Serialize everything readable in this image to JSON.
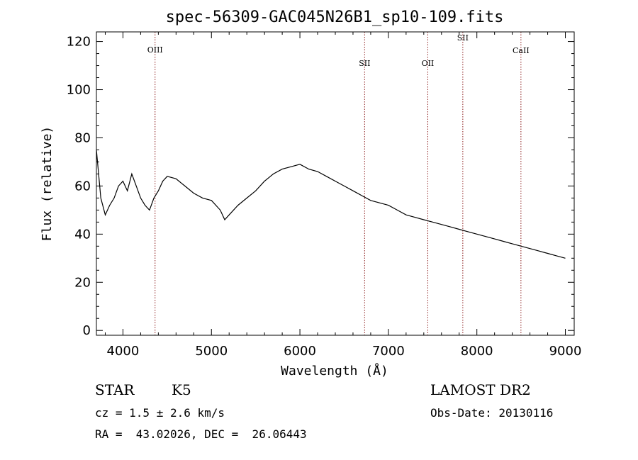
{
  "chart_data": {
    "type": "line",
    "title": "spec-56309-GAC045N26B1_sp10-109.fits",
    "xlabel": "Wavelength (Å)",
    "ylabel": "Flux (relative)",
    "xlim": [
      3700,
      9100
    ],
    "ylim": [
      -2,
      124
    ],
    "xticks": [
      4000,
      5000,
      6000,
      7000,
      8000,
      9000
    ],
    "yticks": [
      0,
      20,
      40,
      60,
      80,
      100,
      120
    ],
    "grid": false,
    "series": [
      {
        "x": [
          3700,
          3750,
          3800,
          3850,
          3900,
          3950,
          4000,
          4050,
          4100,
          4150,
          4200,
          4250,
          4300,
          4350,
          4400,
          4450,
          4500,
          4600,
          4700,
          4800,
          4900,
          5000,
          5100,
          5150,
          5200,
          5300,
          5400,
          5500,
          5600,
          5700,
          5800,
          5900,
          6000,
          6100,
          6200,
          6300,
          6400,
          6500,
          6600,
          6700,
          6800,
          6900,
          7000,
          7100,
          7200,
          7300,
          7400,
          7500,
          7600,
          7700,
          7800,
          7900,
          8000,
          8100,
          8200,
          8300,
          8400,
          8500,
          8600,
          8700,
          8800,
          8900,
          9000
        ],
        "y": [
          75,
          55,
          48,
          52,
          55,
          60,
          62,
          58,
          65,
          60,
          55,
          52,
          50,
          55,
          58,
          62,
          64,
          63,
          60,
          57,
          55,
          54,
          50,
          46,
          48,
          52,
          55,
          58,
          62,
          65,
          67,
          68,
          69,
          67,
          66,
          64,
          62,
          60,
          58,
          56,
          54,
          53,
          52,
          50,
          48,
          47,
          46,
          45,
          44,
          43,
          42,
          41,
          40,
          39,
          38,
          37,
          36,
          35,
          34,
          33,
          32,
          31,
          30
        ]
      }
    ],
    "reference_lines": [
      {
        "label": "OIII",
        "x": 4363
      },
      {
        "label": "SII",
        "x": 6731
      },
      {
        "label": "OII",
        "x": 7445
      },
      {
        "label": "SII",
        "x": 7841
      },
      {
        "label": "CaII",
        "x": 8498
      }
    ],
    "colors": {
      "spectrum": "#000000",
      "reference_line": "#8b1a1a"
    }
  },
  "info": {
    "object_class": "STAR",
    "subclass": "K5",
    "survey": "LAMOST DR2",
    "redshift": "cz = 1.5 ± 2.6 km/s",
    "obs_date": "Obs-Date: 20130116",
    "coords": "RA =  43.02026, DEC =  26.06443"
  }
}
